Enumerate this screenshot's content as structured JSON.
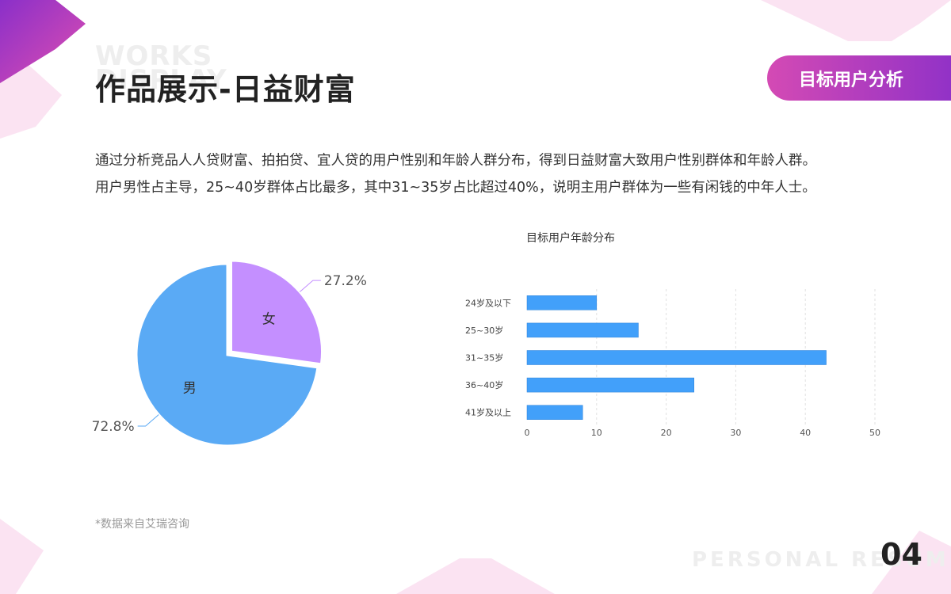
{
  "header": {
    "watermark": "WORKS\nDISPLAY",
    "title": "作品展示-日益财富",
    "tag": "目标用户分析"
  },
  "description": {
    "line1": "通过分析竞品人人贷财富、拍拍贷、宜人贷的用户性别和年龄人群分布，得到日益财富大致用户性别群体和年龄人群。",
    "line2": "用户男性占主导，25~40岁群体占比最多，其中31~35岁占比超过40%，说明主用户群体为一些有闲钱的中年人士。"
  },
  "chart_data": [
    {
      "type": "pie",
      "title": "",
      "slices": [
        {
          "label": "女",
          "value": 27.2,
          "display": "27.2%",
          "color": "#c48fff"
        },
        {
          "label": "男",
          "value": 72.8,
          "display": "72.8%",
          "color": "#5aaaf5"
        }
      ]
    },
    {
      "type": "bar",
      "orientation": "horizontal",
      "title": "目标用户年龄分布",
      "categories": [
        "24岁及以下",
        "25~30岁",
        "31~35岁",
        "36~40岁",
        "41岁及以上"
      ],
      "values": [
        10,
        16,
        43,
        24,
        8
      ],
      "xlim": [
        0,
        50
      ],
      "xticks": [
        0,
        10,
        20,
        30,
        40,
        50
      ],
      "grid": true,
      "color": "#42a0fa"
    }
  ],
  "footer": {
    "source": "*数据来自艾瑞咨询",
    "watermark": "PERSONAL RESUME",
    "page_number": "04"
  },
  "colors": {
    "accent_start": "#d44ab4",
    "accent_end": "#8a2fc9",
    "deco_light": "#fbe3f2"
  }
}
